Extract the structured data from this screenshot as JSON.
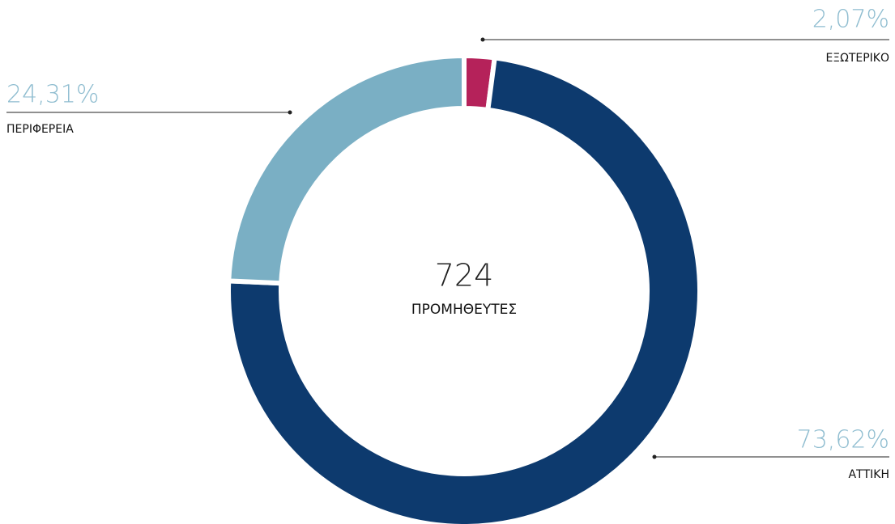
{
  "chart_data": {
    "type": "donut",
    "categories": [
      "ΕΞΩΤΕΡΙΚΟ",
      "ΑΤΤΙΚΗ",
      "ΠΕΡΙΦΕΡΕΙΑ"
    ],
    "values": [
      2.07,
      73.62,
      24.31
    ],
    "value_labels": [
      "2,07%",
      "73,62%",
      "24,31%"
    ],
    "colors": [
      "#b5225a",
      "#0d3a6e",
      "#7aafc4"
    ],
    "center_value": 724,
    "center_label": "ΠΡΟΜΗΘΕΥΤΕΣ"
  }
}
